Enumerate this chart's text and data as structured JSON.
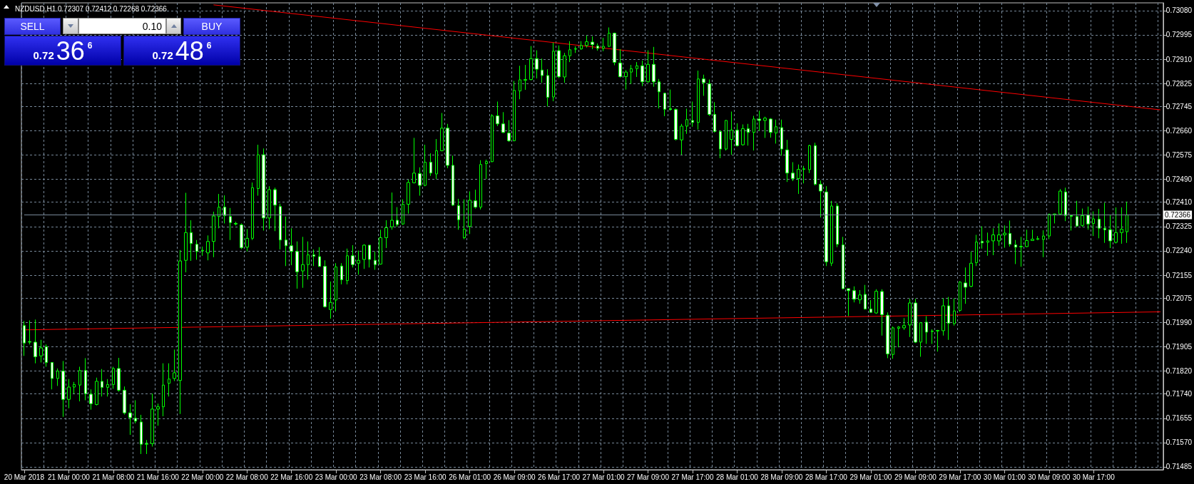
{
  "chart_data": {
    "type": "candlestick",
    "title": "NZDUSD,H1 0.72307 0.72412 0.72268 0.72366",
    "color": "#00ff00",
    "grid": true,
    "annotations": [
      "SELL",
      "0.10",
      "BUY",
      "0.72",
      "36",
      "6",
      "0.72",
      "48",
      "6"
    ],
    "ylim": [
      0.71475,
      0.73107
    ],
    "yticks": [
      {
        "value": 0.7308,
        "label": "0.73080"
      },
      {
        "value": 0.72995,
        "label": "0.72995"
      },
      {
        "value": 0.7291,
        "label": "0.72910"
      },
      {
        "value": 0.72825,
        "label": "0.72825"
      },
      {
        "value": 0.72745,
        "label": "0.72745"
      },
      {
        "value": 0.7266,
        "label": "0.72660"
      },
      {
        "value": 0.72575,
        "label": "0.72575"
      },
      {
        "value": 0.7249,
        "label": "0.72490"
      },
      {
        "value": 0.7241,
        "label": "0.72410"
      },
      {
        "value": 0.72325,
        "label": "0.72325"
      },
      {
        "value": 0.7224,
        "label": "0.72240"
      },
      {
        "value": 0.72155,
        "label": "0.72155"
      },
      {
        "value": 0.72075,
        "label": "0.72075"
      },
      {
        "value": 0.7199,
        "label": "0.71990"
      },
      {
        "value": 0.71905,
        "label": "0.71905"
      },
      {
        "value": 0.7182,
        "label": "0.71820"
      },
      {
        "value": 0.7174,
        "label": "0.71740"
      },
      {
        "value": 0.71655,
        "label": "0.71655"
      },
      {
        "value": 0.7157,
        "label": "0.71570"
      },
      {
        "value": 0.71485,
        "label": "0.71485"
      }
    ],
    "ref_lines": [
      {
        "axis": "y",
        "value": 0.72366,
        "label": "0.72366",
        "color": "#778899"
      }
    ],
    "categories": [
      "20 Mar 2018",
      null,
      null,
      null,
      null,
      null,
      null,
      null,
      "21 Mar 00:00",
      null,
      null,
      null,
      null,
      null,
      null,
      null,
      "21 Mar 08:00",
      null,
      null,
      null,
      null,
      null,
      null,
      null,
      "21 Mar 16:00",
      null,
      null,
      null,
      null,
      null,
      null,
      null,
      "22 Mar 00:00",
      null,
      null,
      null,
      null,
      null,
      null,
      null,
      "22 Mar 08:00",
      null,
      null,
      null,
      null,
      null,
      null,
      null,
      "22 Mar 16:00",
      null,
      null,
      null,
      null,
      null,
      null,
      null,
      "23 Mar 00:00",
      null,
      null,
      null,
      null,
      null,
      null,
      null,
      "23 Mar 08:00",
      null,
      null,
      null,
      null,
      null,
      null,
      null,
      "23 Mar 16:00",
      null,
      null,
      null,
      null,
      null,
      null,
      null,
      "26 Mar 01:00",
      null,
      null,
      null,
      null,
      null,
      null,
      null,
      "26 Mar 09:00",
      null,
      null,
      null,
      null,
      null,
      null,
      null,
      "26 Mar 17:00",
      null,
      null,
      null,
      null,
      null,
      null,
      null,
      "27 Mar 01:00",
      null,
      null,
      null,
      null,
      null,
      null,
      null,
      "27 Mar 09:00",
      null,
      null,
      null,
      null,
      null,
      null,
      null,
      "27 Mar 17:00",
      null,
      null,
      null,
      null,
      null,
      null,
      null,
      "28 Mar 01:00",
      null,
      null,
      null,
      null,
      null,
      null,
      null,
      "28 Mar 09:00",
      null,
      null,
      null,
      null,
      null,
      null,
      null,
      "28 Mar 17:00",
      null,
      null,
      null,
      null,
      null,
      null,
      null,
      "29 Mar 01:00",
      null,
      null,
      null,
      null,
      null,
      null,
      null,
      "29 Mar 09:00",
      null,
      null,
      null,
      null,
      null,
      null,
      null,
      "29 Mar 17:00",
      null,
      null,
      null,
      null,
      null,
      null,
      null,
      "30 Mar 01:00",
      null,
      null,
      null,
      null,
      null,
      null,
      null,
      "30 Mar 09:00",
      null,
      null,
      null,
      null,
      null,
      null,
      null,
      "30 Mar 17:00",
      null,
      null,
      null,
      null,
      null,
      null,
      null,
      null,
      null,
      null,
      null,
      null
    ],
    "ohlc": [
      [
        0.71979,
        0.71995,
        0.71873,
        0.71918
      ],
      [
        0.71923,
        0.71997,
        0.71913,
        0.71921
      ],
      [
        0.71921,
        0.72,
        0.71847,
        0.7187
      ],
      [
        0.71873,
        0.71929,
        0.7185,
        0.71901
      ],
      [
        0.71905,
        0.71913,
        0.71835,
        0.7185
      ],
      [
        0.7185,
        0.7185,
        0.71756,
        0.71794
      ],
      [
        0.71794,
        0.71829,
        0.71768,
        0.7182
      ],
      [
        0.7182,
        0.71855,
        0.7166,
        0.71721
      ],
      [
        0.71721,
        0.71792,
        0.7169,
        0.71764
      ],
      [
        0.71764,
        0.71782,
        0.71741,
        0.71773
      ],
      [
        0.71771,
        0.71835,
        0.71714,
        0.71822
      ],
      [
        0.71822,
        0.71865,
        0.71718,
        0.71741
      ],
      [
        0.71739,
        0.71756,
        0.71685,
        0.71706
      ],
      [
        0.71703,
        0.71797,
        0.717,
        0.71784
      ],
      [
        0.71784,
        0.71827,
        0.71731,
        0.71763
      ],
      [
        0.71763,
        0.71792,
        0.71731,
        0.71773
      ],
      [
        0.71773,
        0.71835,
        0.71758,
        0.71829
      ],
      [
        0.71829,
        0.71866,
        0.71748,
        0.71753
      ],
      [
        0.71753,
        0.71766,
        0.71668,
        0.71674
      ],
      [
        0.71674,
        0.71704,
        0.71597,
        0.71657
      ],
      [
        0.71655,
        0.71718,
        0.71637,
        0.71645
      ],
      [
        0.71642,
        0.71667,
        0.7153,
        0.71564
      ],
      [
        0.71564,
        0.71579,
        0.7153,
        0.71566
      ],
      [
        0.71566,
        0.71741,
        0.71556,
        0.71687
      ],
      [
        0.71687,
        0.71706,
        0.71629,
        0.71695
      ],
      [
        0.71695,
        0.71847,
        0.71662,
        0.71771
      ],
      [
        0.71777,
        0.71847,
        0.71731,
        0.71792
      ],
      [
        0.71794,
        0.71895,
        0.71785,
        0.71814
      ],
      [
        0.71787,
        0.72243,
        0.7167,
        0.72205
      ],
      [
        0.72207,
        0.72443,
        0.72165,
        0.72304
      ],
      [
        0.72304,
        0.72347,
        0.72205,
        0.72266
      ],
      [
        0.72263,
        0.72278,
        0.72209,
        0.72238
      ],
      [
        0.7224,
        0.72255,
        0.72223,
        0.72242
      ],
      [
        0.72233,
        0.72294,
        0.72207,
        0.72273
      ],
      [
        0.72273,
        0.72377,
        0.72218,
        0.72362
      ],
      [
        0.7236,
        0.72439,
        0.72319,
        0.72393
      ],
      [
        0.72393,
        0.72434,
        0.72336,
        0.72363
      ],
      [
        0.7236,
        0.7239,
        0.72278,
        0.72339
      ],
      [
        0.72336,
        0.72342,
        0.72329,
        0.72334
      ],
      [
        0.72331,
        0.72336,
        0.72246,
        0.72251
      ],
      [
        0.72253,
        0.72316,
        0.72238,
        0.72284
      ],
      [
        0.72284,
        0.72479,
        0.72278,
        0.72461
      ],
      [
        0.72458,
        0.72611,
        0.72433,
        0.72576
      ],
      [
        0.72576,
        0.72598,
        0.72311,
        0.72355
      ],
      [
        0.72355,
        0.72466,
        0.72316,
        0.72454
      ],
      [
        0.72454,
        0.72461,
        0.72309,
        0.724
      ],
      [
        0.72395,
        0.72405,
        0.72245,
        0.72278
      ],
      [
        0.72278,
        0.7236,
        0.72187,
        0.72258
      ],
      [
        0.72258,
        0.72319,
        0.7219,
        0.72238
      ],
      [
        0.72238,
        0.72273,
        0.72108,
        0.72167
      ],
      [
        0.7217,
        0.72289,
        0.72111,
        0.72192
      ],
      [
        0.72192,
        0.72273,
        0.7214,
        0.72226
      ],
      [
        0.72226,
        0.72245,
        0.72187,
        0.72221
      ],
      [
        0.7222,
        0.72253,
        0.72184,
        0.72186
      ],
      [
        0.72186,
        0.72207,
        0.72042,
        0.72045
      ],
      [
        0.72035,
        0.72133,
        0.72003,
        0.7206
      ],
      [
        0.72068,
        0.72197,
        0.72028,
        0.72184
      ],
      [
        0.72187,
        0.72197,
        0.72123,
        0.72139
      ],
      [
        0.72136,
        0.72248,
        0.72123,
        0.72223
      ],
      [
        0.72223,
        0.7226,
        0.72182,
        0.72192
      ],
      [
        0.72197,
        0.72241,
        0.72157,
        0.72207
      ],
      [
        0.7221,
        0.72263,
        0.72177,
        0.7226
      ],
      [
        0.7226,
        0.7226,
        0.72182,
        0.7221
      ],
      [
        0.72207,
        0.72238,
        0.72174,
        0.72192
      ],
      [
        0.72194,
        0.72314,
        0.72192,
        0.72286
      ],
      [
        0.72286,
        0.72347,
        0.7225,
        0.72321
      ],
      [
        0.72324,
        0.72444,
        0.72314,
        0.72347
      ],
      [
        0.72347,
        0.72393,
        0.72324,
        0.72332
      ],
      [
        0.72334,
        0.7242,
        0.72331,
        0.72403
      ],
      [
        0.72403,
        0.72489,
        0.7237,
        0.72479
      ],
      [
        0.72478,
        0.72635,
        0.72476,
        0.72512
      ],
      [
        0.7251,
        0.72532,
        0.72433,
        0.72469
      ],
      [
        0.72469,
        0.72611,
        0.72466,
        0.7255
      ],
      [
        0.7255,
        0.72581,
        0.72502,
        0.72512
      ],
      [
        0.72509,
        0.72631,
        0.72491,
        0.7259
      ],
      [
        0.7259,
        0.72722,
        0.72588,
        0.72669
      ],
      [
        0.72669,
        0.72684,
        0.72529,
        0.72539
      ],
      [
        0.72539,
        0.72573,
        0.72397,
        0.724
      ],
      [
        0.72398,
        0.72422,
        0.72314,
        0.72349
      ],
      [
        0.72286,
        0.7242,
        0.72281,
        0.72316
      ],
      [
        0.72326,
        0.72448,
        0.72299,
        0.72417
      ],
      [
        0.72415,
        0.72454,
        0.72388,
        0.72393
      ],
      [
        0.72393,
        0.72557,
        0.72385,
        0.72542
      ],
      [
        0.72545,
        0.72559,
        0.72491,
        0.72552
      ],
      [
        0.72552,
        0.72718,
        0.7255,
        0.72712
      ],
      [
        0.72712,
        0.72762,
        0.72676,
        0.72684
      ],
      [
        0.72684,
        0.72725,
        0.72652,
        0.72654
      ],
      [
        0.72652,
        0.72697,
        0.72621,
        0.72625
      ],
      [
        0.72625,
        0.72834,
        0.72623,
        0.72801
      ],
      [
        0.72799,
        0.72887,
        0.7277,
        0.72838
      ],
      [
        0.72836,
        0.7289,
        0.72803,
        0.72839
      ],
      [
        0.72839,
        0.72956,
        0.72836,
        0.72912
      ],
      [
        0.72912,
        0.72941,
        0.72843,
        0.72875
      ],
      [
        0.72872,
        0.72912,
        0.72828,
        0.72853
      ],
      [
        0.72853,
        0.72875,
        0.72745,
        0.72777
      ],
      [
        0.72778,
        0.72968,
        0.72763,
        0.72938
      ],
      [
        0.7294,
        0.72958,
        0.72844,
        0.72849
      ],
      [
        0.72848,
        0.72932,
        0.72828,
        0.72922
      ],
      [
        0.72922,
        0.72973,
        0.729,
        0.72943
      ],
      [
        0.72945,
        0.72955,
        0.72932,
        0.72947
      ],
      [
        0.72946,
        0.72973,
        0.72943,
        0.72958
      ],
      [
        0.72958,
        0.72993,
        0.72951,
        0.72971
      ],
      [
        0.7297,
        0.7299,
        0.72945,
        0.72961
      ],
      [
        0.72956,
        0.72965,
        0.7294,
        0.72948
      ],
      [
        0.72948,
        0.72985,
        0.72938,
        0.72955
      ],
      [
        0.72955,
        0.73021,
        0.72953,
        0.73001
      ],
      [
        0.73001,
        0.73003,
        0.72889,
        0.72899
      ],
      [
        0.72897,
        0.72945,
        0.72846,
        0.72849
      ],
      [
        0.72849,
        0.72872,
        0.72804,
        0.72865
      ],
      [
        0.72865,
        0.7289,
        0.72824,
        0.72877
      ],
      [
        0.72877,
        0.729,
        0.72848,
        0.72887
      ],
      [
        0.72887,
        0.72905,
        0.72816,
        0.72831
      ],
      [
        0.72831,
        0.72941,
        0.72828,
        0.72892
      ],
      [
        0.72892,
        0.72953,
        0.72814,
        0.72831
      ],
      [
        0.72831,
        0.72841,
        0.72738,
        0.72796
      ],
      [
        0.72791,
        0.72793,
        0.72711,
        0.72735
      ],
      [
        0.72737,
        0.72804,
        0.7273,
        0.72734
      ],
      [
        0.72734,
        0.72738,
        0.72626,
        0.7263
      ],
      [
        0.72628,
        0.72684,
        0.72576,
        0.72676
      ],
      [
        0.72676,
        0.72737,
        0.72649,
        0.72699
      ],
      [
        0.72696,
        0.72762,
        0.72674,
        0.72689
      ],
      [
        0.72689,
        0.7287,
        0.72664,
        0.72841
      ],
      [
        0.72841,
        0.72856,
        0.72782,
        0.72828
      ],
      [
        0.72824,
        0.72839,
        0.72712,
        0.72717
      ],
      [
        0.72717,
        0.7276,
        0.72654,
        0.72657
      ],
      [
        0.72657,
        0.72661,
        0.72564,
        0.72596
      ],
      [
        0.72596,
        0.72697,
        0.72591,
        0.72696
      ],
      [
        0.7263,
        0.72727,
        0.72576,
        0.72662
      ],
      [
        0.72662,
        0.72686,
        0.72605,
        0.72608
      ],
      [
        0.72611,
        0.72682,
        0.72608,
        0.72667
      ],
      [
        0.72667,
        0.72684,
        0.72608,
        0.72654
      ],
      [
        0.72654,
        0.72712,
        0.72591,
        0.72701
      ],
      [
        0.72701,
        0.7273,
        0.72659,
        0.72696
      ],
      [
        0.72696,
        0.72709,
        0.72635,
        0.72704
      ],
      [
        0.72701,
        0.72704,
        0.72636,
        0.72654
      ],
      [
        0.72652,
        0.72699,
        0.72615,
        0.72674
      ],
      [
        0.72671,
        0.72699,
        0.72573,
        0.72596
      ],
      [
        0.72593,
        0.72628,
        0.72481,
        0.72512
      ],
      [
        0.72512,
        0.7255,
        0.72484,
        0.72493
      ],
      [
        0.72493,
        0.72542,
        0.72439,
        0.72525
      ],
      [
        0.72525,
        0.72537,
        0.72476,
        0.72527
      ],
      [
        0.72524,
        0.72611,
        0.72512,
        0.72608
      ],
      [
        0.72608,
        0.72618,
        0.72469,
        0.72473
      ],
      [
        0.72473,
        0.72486,
        0.72357,
        0.72449
      ],
      [
        0.72446,
        0.72466,
        0.72187,
        0.72202
      ],
      [
        0.72197,
        0.72415,
        0.72187,
        0.72397
      ],
      [
        0.72397,
        0.72407,
        0.72253,
        0.72263
      ],
      [
        0.72261,
        0.72289,
        0.72106,
        0.72108
      ],
      [
        0.72108,
        0.72108,
        0.72012,
        0.72101
      ],
      [
        0.72101,
        0.72116,
        0.7206,
        0.72071
      ],
      [
        0.72069,
        0.72103,
        0.72055,
        0.72086
      ],
      [
        0.72088,
        0.72121,
        0.72035,
        0.72037
      ],
      [
        0.72037,
        0.72068,
        0.72023,
        0.72025
      ],
      [
        0.72023,
        0.72106,
        0.7202,
        0.72099
      ],
      [
        0.72098,
        0.72106,
        0.71944,
        0.72017
      ],
      [
        0.72015,
        0.72025,
        0.71865,
        0.7188
      ],
      [
        0.71878,
        0.71976,
        0.71863,
        0.71971
      ],
      [
        0.71969,
        0.71977,
        0.71903,
        0.71974
      ],
      [
        0.71971,
        0.72005,
        0.71964,
        0.71979
      ],
      [
        0.71981,
        0.72073,
        0.71939,
        0.72058
      ],
      [
        0.72058,
        0.72073,
        0.71918,
        0.71921
      ],
      [
        0.71921,
        0.71991,
        0.7187,
        0.71989
      ],
      [
        0.71991,
        0.72012,
        0.71915,
        0.71956
      ],
      [
        0.71958,
        0.71966,
        0.71915,
        0.7196
      ],
      [
        0.7196,
        0.71964,
        0.71888,
        0.71962
      ],
      [
        0.71961,
        0.72074,
        0.71944,
        0.72048
      ],
      [
        0.72048,
        0.72079,
        0.71929,
        0.71987
      ],
      [
        0.71986,
        0.72074,
        0.71979,
        0.7203
      ],
      [
        0.72032,
        0.72134,
        0.72027,
        0.72131
      ],
      [
        0.72128,
        0.72182,
        0.72055,
        0.72113
      ],
      [
        0.72116,
        0.72238,
        0.72113,
        0.72197
      ],
      [
        0.72199,
        0.72296,
        0.72187,
        0.72271
      ],
      [
        0.72273,
        0.72326,
        0.72248,
        0.72268
      ],
      [
        0.7227,
        0.72304,
        0.72223,
        0.72275
      ],
      [
        0.72275,
        0.72319,
        0.72225,
        0.72296
      ],
      [
        0.72275,
        0.72336,
        0.72258,
        0.72296
      ],
      [
        0.72296,
        0.72329,
        0.72251,
        0.72302
      ],
      [
        0.72301,
        0.72346,
        0.72255,
        0.72263
      ],
      [
        0.72261,
        0.72278,
        0.72194,
        0.72253
      ],
      [
        0.72254,
        0.72289,
        0.72185,
        0.72256
      ],
      [
        0.72255,
        0.72314,
        0.72253,
        0.72276
      ],
      [
        0.72276,
        0.72314,
        0.72275,
        0.72281
      ],
      [
        0.7228,
        0.72292,
        0.72278,
        0.72283
      ],
      [
        0.7228,
        0.72312,
        0.72218,
        0.72292
      ],
      [
        0.72292,
        0.7237,
        0.72281,
        0.72368
      ],
      [
        0.72367,
        0.7237,
        0.72336,
        0.72369
      ],
      [
        0.72369,
        0.72456,
        0.72365,
        0.72449
      ],
      [
        0.72446,
        0.72461,
        0.72344,
        0.72363
      ],
      [
        0.72364,
        0.72365,
        0.72311,
        0.72361
      ],
      [
        0.7236,
        0.72415,
        0.72324,
        0.72327
      ],
      [
        0.72329,
        0.72388,
        0.72324,
        0.72363
      ],
      [
        0.72365,
        0.72395,
        0.72314,
        0.72334
      ],
      [
        0.72336,
        0.72378,
        0.72292,
        0.72352
      ],
      [
        0.72351,
        0.72387,
        0.72284,
        0.72319
      ],
      [
        0.72319,
        0.72408,
        0.72268,
        0.72314
      ],
      [
        0.72314,
        0.72365,
        0.7225,
        0.72275
      ],
      [
        0.7227,
        0.72392,
        0.72266,
        0.72304
      ],
      [
        0.72304,
        0.72392,
        0.72265,
        0.72316
      ],
      [
        0.72307,
        0.72412,
        0.72268,
        0.72366
      ],
      null,
      null,
      null,
      null,
      null,
      null
    ],
    "series": [
      {
        "type": "line",
        "color": "#ff0000",
        "values": [
          null,
          null,
          null,
          null,
          null,
          null,
          null,
          null,
          null,
          null,
          null,
          null,
          null,
          null,
          null,
          null,
          null,
          null,
          null,
          null,
          null,
          null,
          null,
          null,
          null,
          null,
          null,
          null,
          null,
          null,
          null,
          null,
          null,
          null,
          0.731,
          null,
          null,
          null,
          null,
          null,
          null,
          null,
          null,
          null,
          null,
          null,
          null,
          null,
          null,
          null,
          null,
          null,
          null,
          null,
          null,
          null,
          null,
          null,
          null,
          null,
          null,
          null,
          null,
          null,
          null,
          null,
          null,
          null,
          null,
          null,
          null,
          null,
          null,
          null,
          null,
          null,
          null,
          null,
          null,
          null,
          null,
          null,
          null,
          null,
          null,
          null,
          null,
          null,
          null,
          null,
          null,
          null,
          null,
          null,
          null,
          null,
          null,
          null,
          null,
          null,
          null,
          null,
          null,
          null,
          null,
          null,
          null,
          null,
          null,
          null,
          null,
          null,
          null,
          null,
          null,
          null,
          null,
          null,
          null,
          null,
          null,
          null,
          null,
          null,
          null,
          null,
          null,
          null,
          null,
          null,
          null,
          null,
          null,
          null,
          null,
          null,
          null,
          null,
          null,
          null,
          null,
          null,
          null,
          null,
          null,
          null,
          null,
          null,
          null,
          null,
          null,
          null,
          null,
          null,
          null,
          null,
          null,
          null,
          null,
          null,
          null,
          null,
          null,
          null,
          null,
          null,
          null,
          null,
          null,
          null,
          null,
          null,
          null,
          null,
          null,
          null,
          null,
          null,
          null,
          null,
          null,
          null,
          null,
          null,
          null,
          null,
          null,
          null,
          null,
          null,
          null,
          null,
          null,
          null,
          null,
          null,
          null,
          null,
          null,
          null,
          null,
          null,
          null,
          null,
          0.72733
        ]
      },
      {
        "type": "line",
        "color": "#ff0000",
        "values": [
          0.71964,
          null,
          null,
          null,
          null,
          null,
          null,
          null,
          null,
          null,
          null,
          null,
          null,
          null,
          null,
          null,
          null,
          null,
          null,
          null,
          null,
          null,
          null,
          null,
          null,
          null,
          null,
          null,
          null,
          null,
          null,
          null,
          null,
          null,
          null,
          null,
          null,
          null,
          null,
          null,
          null,
          null,
          null,
          null,
          null,
          null,
          null,
          null,
          null,
          null,
          null,
          null,
          null,
          null,
          null,
          null,
          null,
          null,
          null,
          null,
          null,
          null,
          null,
          null,
          null,
          null,
          null,
          null,
          null,
          null,
          null,
          null,
          null,
          null,
          null,
          null,
          null,
          null,
          null,
          null,
          null,
          null,
          null,
          null,
          null,
          null,
          null,
          null,
          null,
          null,
          null,
          null,
          null,
          null,
          null,
          null,
          null,
          null,
          null,
          null,
          null,
          null,
          null,
          null,
          null,
          null,
          null,
          null,
          null,
          null,
          null,
          null,
          null,
          null,
          null,
          null,
          null,
          null,
          null,
          null,
          null,
          null,
          null,
          null,
          null,
          null,
          null,
          null,
          null,
          null,
          null,
          null,
          null,
          null,
          null,
          null,
          null,
          null,
          null,
          null,
          null,
          null,
          null,
          null,
          null,
          null,
          null,
          null,
          null,
          null,
          null,
          null,
          null,
          null,
          null,
          null,
          null,
          null,
          null,
          null,
          null,
          null,
          null,
          null,
          null,
          null,
          null,
          null,
          null,
          null,
          null,
          null,
          null,
          null,
          null,
          null,
          null,
          null,
          null,
          null,
          null,
          null,
          null,
          null,
          null,
          null,
          null,
          null,
          null,
          null,
          null,
          null,
          null,
          null,
          null,
          null,
          null,
          null,
          null,
          null,
          null,
          null,
          null,
          null,
          0.72027
        ]
      }
    ]
  }
}
